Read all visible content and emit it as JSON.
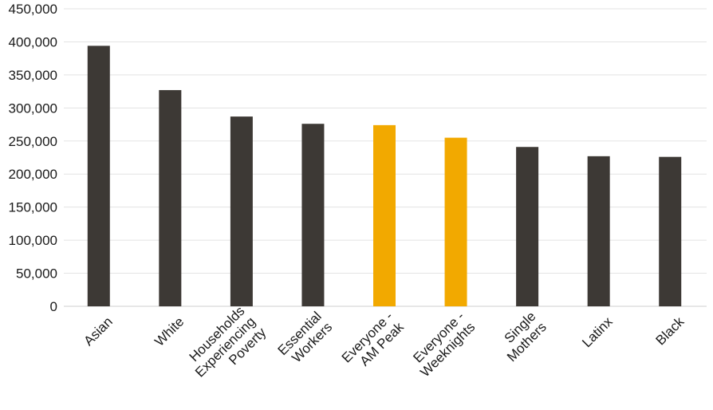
{
  "chart_data": {
    "type": "bar",
    "title": "",
    "xlabel": "",
    "ylabel": "",
    "ylim": [
      0,
      450000
    ],
    "yticks": [
      0,
      50000,
      100000,
      150000,
      200000,
      250000,
      300000,
      350000,
      400000,
      450000
    ],
    "ytick_labels": [
      "0",
      "50,000",
      "100,000",
      "150,000",
      "200,000",
      "250,000",
      "300,000",
      "350,000",
      "400,000",
      "450,000"
    ],
    "grid": true,
    "legend": "none",
    "categories": [
      [
        "Asian"
      ],
      [
        "White"
      ],
      [
        "Households",
        "Experiencing",
        "Poverty"
      ],
      [
        "Essential",
        "Workers"
      ],
      [
        "Everyone -",
        "AM Peak"
      ],
      [
        "Everyone -",
        "Weeknights"
      ],
      [
        "Single",
        "Mothers"
      ],
      [
        "Latinx"
      ],
      [
        "Black"
      ]
    ],
    "values": [
      394000,
      327000,
      287000,
      276000,
      274000,
      255000,
      241000,
      227000,
      226000
    ],
    "bar_colors": [
      "#3d3935",
      "#3d3935",
      "#3d3935",
      "#3d3935",
      "#f2a900",
      "#f2a900",
      "#3d3935",
      "#3d3935",
      "#3d3935"
    ],
    "colors": {
      "default_bar": "#3d3935",
      "highlight_bar": "#f2a900",
      "gridline": "#e3e3e3",
      "text": "#1a1a1a"
    }
  }
}
